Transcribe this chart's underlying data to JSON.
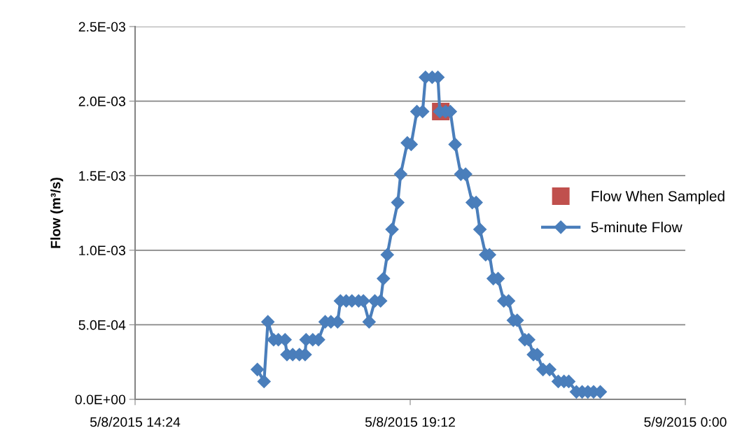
{
  "chart_data": {
    "type": "line",
    "ylabel": "Flow (m³/s)",
    "xlim": [
      "2015-05-08T14:24",
      "2015-05-09T00:00"
    ],
    "xticks": [
      {
        "value": "2015-05-08T14:24",
        "label": "5/8/2015 14:24"
      },
      {
        "value": "2015-05-08T19:12",
        "label": "5/8/2015 19:12"
      },
      {
        "value": "2015-05-09T00:00",
        "label": "5/9/2015 0:00"
      }
    ],
    "ylim": [
      0,
      0.0025
    ],
    "yticks": [
      {
        "value": 0,
        "label": "0.0E+00"
      },
      {
        "value": 0.0005,
        "label": "5.0E-04"
      },
      {
        "value": 0.001,
        "label": "1.0E-03"
      },
      {
        "value": 0.0015,
        "label": "1.5E-03"
      },
      {
        "value": 0.002,
        "label": "2.0E-03"
      },
      {
        "value": 0.0025,
        "label": "2.5E-03"
      }
    ],
    "grid": "y",
    "legend": "right",
    "series": [
      {
        "name": "Flow When Sampled",
        "type": "scatter",
        "marker": "square",
        "color": "#c0504d",
        "x": [
          "2015-05-08T19:44"
        ],
        "values": [
          0.00193
        ]
      },
      {
        "name": "5-minute Flow",
        "marker": "diamond",
        "color": "#4a7ebb",
        "x": [
          "2015-05-08T16:32",
          "2015-05-08T16:39",
          "2015-05-08T16:43",
          "2015-05-08T16:49",
          "2015-05-08T16:54",
          "2015-05-08T17:01",
          "2015-05-08T17:03",
          "2015-05-08T17:09",
          "2015-05-08T17:16",
          "2015-05-08T17:22",
          "2015-05-08T17:23",
          "2015-05-08T17:30",
          "2015-05-08T17:36",
          "2015-05-08T17:43",
          "2015-05-08T17:49",
          "2015-05-08T17:56",
          "2015-05-08T17:59",
          "2015-05-08T18:05",
          "2015-05-08T18:11",
          "2015-05-08T18:18",
          "2015-05-08T18:23",
          "2015-05-08T18:29",
          "2015-05-08T18:35",
          "2015-05-08T18:41",
          "2015-05-08T18:44",
          "2015-05-08T18:48",
          "2015-05-08T18:53",
          "2015-05-08T18:59",
          "2015-05-08T19:02",
          "2015-05-08T19:09",
          "2015-05-08T19:13",
          "2015-05-08T19:19",
          "2015-05-08T19:25",
          "2015-05-08T19:28",
          "2015-05-08T19:35",
          "2015-05-08T19:41",
          "2015-05-08T19:43",
          "2015-05-08T19:49",
          "2015-05-08T19:54",
          "2015-05-08T19:59",
          "2015-05-08T20:05",
          "2015-05-08T20:10",
          "2015-05-08T20:17",
          "2015-05-08T20:21",
          "2015-05-08T20:25",
          "2015-05-08T20:31",
          "2015-05-08T20:35",
          "2015-05-08T20:39",
          "2015-05-08T20:44",
          "2015-05-08T20:50",
          "2015-05-08T20:55",
          "2015-05-08T21:00",
          "2015-05-08T21:04",
          "2015-05-08T21:12",
          "2015-05-08T21:16",
          "2015-05-08T21:21",
          "2015-05-08T21:25",
          "2015-05-08T21:31",
          "2015-05-08T21:38",
          "2015-05-08T21:47",
          "2015-05-08T21:53",
          "2015-05-08T21:58",
          "2015-05-08T22:06",
          "2015-05-08T22:12",
          "2015-05-08T22:18",
          "2015-05-08T22:24",
          "2015-05-08T22:31"
        ],
        "values": [
          0.0002,
          0.00012,
          0.00052,
          0.0004,
          0.0004,
          0.0004,
          0.0003,
          0.0003,
          0.0003,
          0.0003,
          0.0004,
          0.0004,
          0.0004,
          0.00052,
          0.00052,
          0.00052,
          0.00066,
          0.00066,
          0.00066,
          0.00066,
          0.00066,
          0.00052,
          0.00066,
          0.00066,
          0.00081,
          0.00097,
          0.00114,
          0.00132,
          0.00151,
          0.00172,
          0.00171,
          0.00193,
          0.00193,
          0.00216,
          0.00216,
          0.00216,
          0.00193,
          0.00193,
          0.00193,
          0.00171,
          0.00151,
          0.00151,
          0.00132,
          0.00132,
          0.00114,
          0.00097,
          0.00097,
          0.00081,
          0.00081,
          0.00066,
          0.00066,
          0.00053,
          0.00053,
          0.0004,
          0.0004,
          0.0003,
          0.0003,
          0.0002,
          0.0002,
          0.00012,
          0.00012,
          0.00012,
          5e-05,
          5e-05,
          5e-05,
          5e-05,
          5e-05
        ]
      }
    ]
  }
}
